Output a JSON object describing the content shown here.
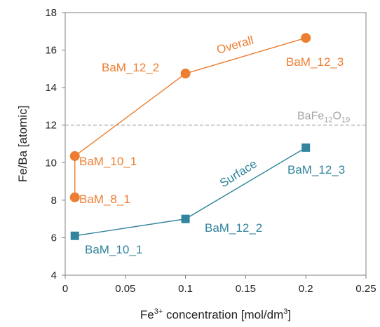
{
  "chart_data": {
    "type": "scatter",
    "xlabel": {
      "base": "Fe",
      "sup1": "3+",
      "middle": " concentration [mol/dm",
      "sup2": "3",
      "end": "]"
    },
    "ylabel": "Fe/Ba [atomic]",
    "xlim": [
      0,
      0.25
    ],
    "ylim": [
      4,
      18
    ],
    "x_ticks": [
      0,
      0.05,
      0.1,
      0.15,
      0.2,
      0.25
    ],
    "x_tick_labels": [
      "0",
      "0.05",
      "0.1",
      "0.15",
      "0.2",
      "0.25"
    ],
    "y_ticks": [
      4,
      6,
      8,
      10,
      12,
      14,
      16,
      18
    ],
    "y_tick_labels": [
      "4",
      "6",
      "8",
      "10",
      "12",
      "14",
      "16",
      "18"
    ],
    "grid": false,
    "reference_line": {
      "y": 12,
      "label_base": "BaFe",
      "label_sub1": "12",
      "label_mid": "O",
      "label_sub2": "19",
      "color": "#a6a6a6"
    },
    "series": [
      {
        "name": "Overall",
        "marker": "circle",
        "color": "#ed7d31",
        "points": [
          {
            "x": 0.008,
            "y": 8.15,
            "label": "BaM_8_1"
          },
          {
            "x": 0.008,
            "y": 10.35,
            "label": "BaM_10_1"
          },
          {
            "x": 0.1,
            "y": 14.75,
            "label": "BaM_12_2"
          },
          {
            "x": 0.2,
            "y": 16.65,
            "label": "BaM_12_3"
          }
        ]
      },
      {
        "name": "Surface",
        "marker": "square",
        "color": "#31849b",
        "points": [
          {
            "x": 0.008,
            "y": 6.1,
            "label": "BaM_10_1"
          },
          {
            "x": 0.1,
            "y": 7.0,
            "label": "BaM_12_2"
          },
          {
            "x": 0.2,
            "y": 10.8,
            "label": "BaM_12_3"
          }
        ]
      }
    ]
  }
}
